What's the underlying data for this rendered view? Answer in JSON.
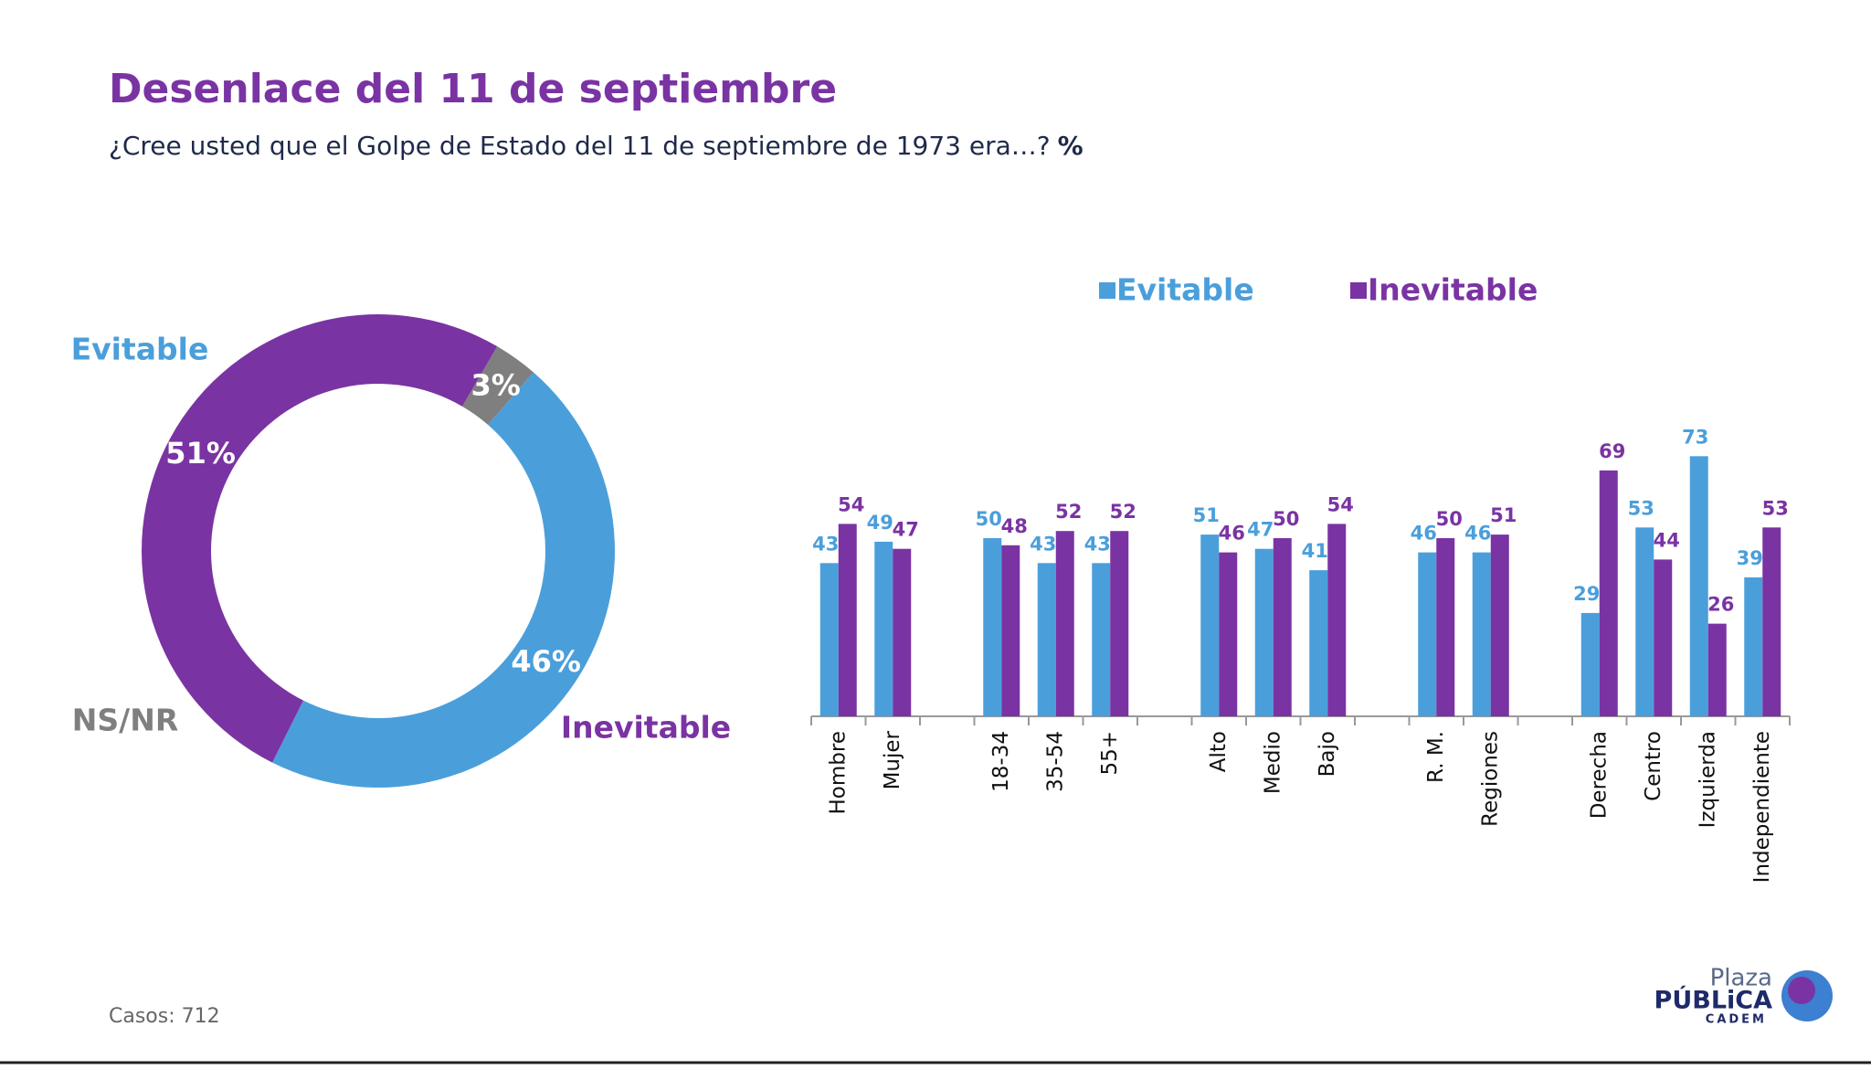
{
  "title": "Desenlace del 11 de septiembre",
  "subtitle": "¿Cree usted que el Golpe de Estado del 11 de septiembre de 1973 era…?",
  "subtitle_unit": "%",
  "footer": "Casos: 712",
  "logo": {
    "line1": "Plaza",
    "line2": "PÚBLiCA",
    "line3": "CADEM"
  },
  "chart_data": [
    {
      "type": "donut",
      "categories": [
        "Evitable",
        "Inevitable",
        "NS/NR"
      ],
      "values": [
        46,
        51,
        3
      ],
      "value_labels": [
        "46%",
        "51%",
        "3%"
      ],
      "colors": [
        "#4a9fdb",
        "#7a33a3",
        "#7f7f7f"
      ]
    },
    {
      "type": "bar",
      "categories": [
        "Hombre",
        "Mujer",
        null,
        "18-34",
        "35-54",
        "55+",
        null,
        "Alto",
        "Medio",
        "Bajo",
        null,
        "R. M.",
        "Regiones",
        null,
        "Derecha",
        "Centro",
        "Izquierda",
        "Independiente"
      ],
      "series": [
        {
          "name": "Evitable",
          "color": "#4a9fdb",
          "values": [
            43,
            49,
            null,
            50,
            43,
            43,
            null,
            51,
            47,
            41,
            null,
            46,
            46,
            null,
            29,
            53,
            73,
            39
          ]
        },
        {
          "name": "Inevitable",
          "color": "#7a33a3",
          "values": [
            54,
            47,
            null,
            48,
            52,
            52,
            null,
            46,
            50,
            54,
            null,
            50,
            51,
            null,
            69,
            44,
            26,
            53
          ]
        }
      ],
      "ylim": [
        0,
        80
      ],
      "legend": "top"
    }
  ]
}
